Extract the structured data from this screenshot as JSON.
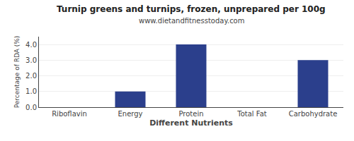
{
  "chart_data": {
    "type": "bar",
    "title": "Turnip greens and turnips, frozen, unprepared per 100g",
    "subtitle": "www.dietandfitnesstoday.com",
    "xlabel": "Different Nutrients",
    "ylabel": "Percentage of RDA (%)",
    "categories": [
      "Riboflavin",
      "Energy",
      "Protein",
      "Total Fat",
      "Carbohydrate"
    ],
    "values": [
      0.0,
      1.0,
      4.0,
      0.0,
      3.0
    ],
    "color": "#2b3f8c",
    "ylim": [
      0,
      4.5
    ],
    "yticks": [
      {
        "value": 0,
        "label": "0.0"
      },
      {
        "value": 1,
        "label": "1.0"
      },
      {
        "value": 2,
        "label": "2.0"
      },
      {
        "value": 3,
        "label": "3.0"
      },
      {
        "value": 4,
        "label": "4.0"
      }
    ],
    "grid": true
  }
}
